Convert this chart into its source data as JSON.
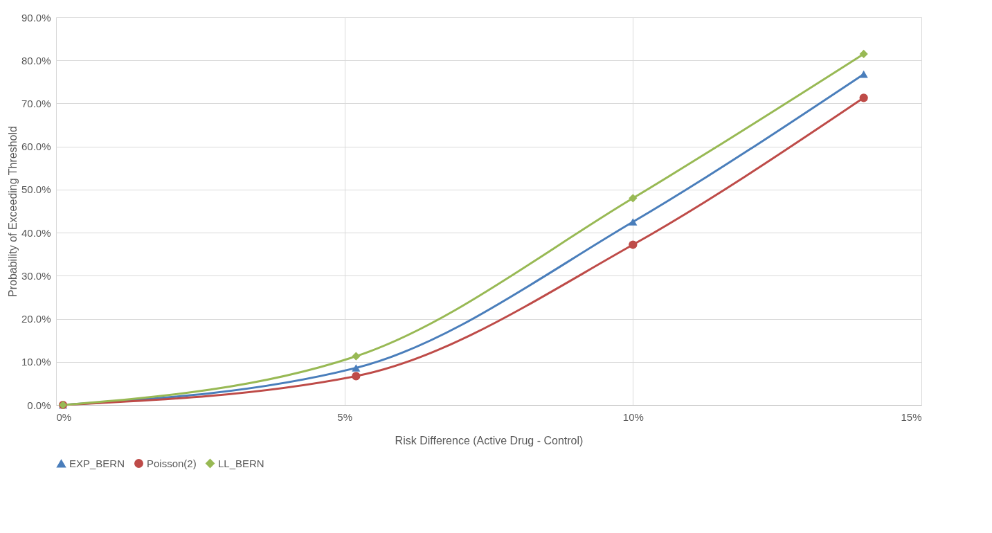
{
  "chart_data": {
    "type": "line",
    "xlabel": "Risk Difference (Active Drug - Control)",
    "ylabel": "Probability of Exceeding Threshold",
    "x": [
      0.12,
      5.2,
      10,
      14
    ],
    "series": [
      {
        "name": "EXP_BERN",
        "color": "#4a7ebb",
        "marker": "triangle",
        "values": [
          0,
          8.6,
          42.5,
          76.8
        ]
      },
      {
        "name": "Poisson(2)",
        "color": "#be4b48",
        "marker": "circle",
        "values": [
          0,
          6.7,
          37.2,
          71.3
        ]
      },
      {
        "name": "LL_BERN",
        "color": "#98b954",
        "marker": "diamond",
        "values": [
          0,
          11.3,
          48.0,
          81.5
        ]
      }
    ],
    "xlim": [
      0,
      15
    ],
    "xticks": [
      {
        "value": 0,
        "label": "0%"
      },
      {
        "value": 5,
        "label": "5%"
      },
      {
        "value": 10,
        "label": "10%"
      },
      {
        "value": 15,
        "label": "15%"
      }
    ],
    "ylim": [
      0,
      90
    ],
    "yticks": [
      {
        "value": 0,
        "label": "0.0%"
      },
      {
        "value": 10,
        "label": "10.0%"
      },
      {
        "value": 20,
        "label": "20.0%"
      },
      {
        "value": 30,
        "label": "30.0%"
      },
      {
        "value": 40,
        "label": "40.0%"
      },
      {
        "value": 50,
        "label": "50.0%"
      },
      {
        "value": 60,
        "label": "60.0%"
      },
      {
        "value": 70,
        "label": "70.0%"
      },
      {
        "value": 80,
        "label": "80.0%"
      },
      {
        "value": 90,
        "label": "90.0%"
      }
    ],
    "grid": true,
    "legend": "bottom",
    "line_style": "solid"
  }
}
